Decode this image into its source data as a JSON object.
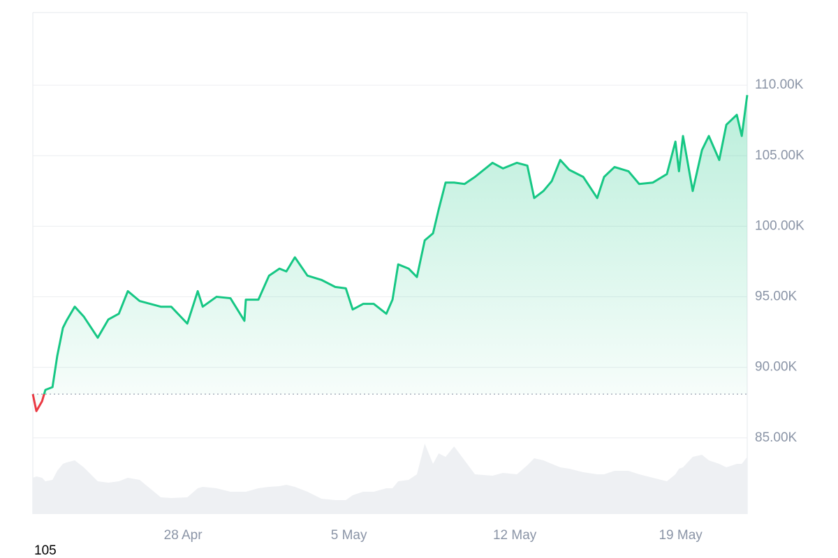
{
  "chart_data": {
    "type": "line",
    "x": [
      111.66,
      111.81,
      112.05,
      112.19,
      112.49,
      112.69,
      112.93,
      113.08,
      113.43,
      113.81,
      114.4,
      114.85,
      115.29,
      115.67,
      116.17,
      117.06,
      117.5,
      118.18,
      118.62,
      118.83,
      119.41,
      120.0,
      120.59,
      120.65,
      121.18,
      121.63,
      122.07,
      122.36,
      122.72,
      123.25,
      123.84,
      124.42,
      124.87,
      125.16,
      125.6,
      126.05,
      126.58,
      126.84,
      127.08,
      127.52,
      127.87,
      128.2,
      128.55,
      128.79,
      129.08,
      129.44,
      129.88,
      130.32,
      131.06,
      131.5,
      132.09,
      132.53,
      132.82,
      133.21,
      133.56,
      133.92,
      134.3,
      134.89,
      135.48,
      135.77,
      136.21,
      136.8,
      137.25,
      137.83,
      138.42,
      138.78,
      138.93,
      139.1,
      139.51,
      139.9,
      140.19,
      140.63,
      140.93,
      141.37,
      141.58,
      141.81
    ],
    "values": [
      88.1,
      86.9,
      87.6,
      88.4,
      88.6,
      90.8,
      92.8,
      93.3,
      94.3,
      93.6,
      92.1,
      93.4,
      93.8,
      95.4,
      94.7,
      94.3,
      94.3,
      93.1,
      95.4,
      94.3,
      95.0,
      94.9,
      93.3,
      94.8,
      94.8,
      96.5,
      97.0,
      96.8,
      97.8,
      96.5,
      96.2,
      95.7,
      95.6,
      94.1,
      94.5,
      94.5,
      93.8,
      94.8,
      97.3,
      97.0,
      96.4,
      99.0,
      99.5,
      101.2,
      103.1,
      103.1,
      103.0,
      103.5,
      104.5,
      104.1,
      104.5,
      104.3,
      102.0,
      102.5,
      103.2,
      104.7,
      104.0,
      103.5,
      102.0,
      103.5,
      104.2,
      103.9,
      103.0,
      103.1,
      103.7,
      106.0,
      103.9,
      106.4,
      102.5,
      105.4,
      106.4,
      104.7,
      107.2,
      107.9,
      106.4,
      109.3
    ],
    "volume": [
      52,
      54,
      52,
      47,
      49,
      62,
      72,
      74,
      77,
      67,
      47,
      45,
      47,
      52,
      49,
      24,
      23,
      24,
      37,
      39,
      37,
      32,
      32,
      32,
      37,
      39,
      40,
      42,
      39,
      32,
      22,
      20,
      20,
      27,
      32,
      32,
      37,
      37,
      47,
      49,
      57,
      101,
      72,
      87,
      82,
      97,
      77,
      57,
      55,
      59,
      57,
      70,
      80,
      77,
      72,
      67,
      65,
      60,
      57,
      57,
      62,
      62,
      57,
      52,
      47,
      57,
      65,
      67,
      82,
      85,
      77,
      72,
      67,
      72,
      72,
      82
    ],
    "volume_lim": [
      0,
      117
    ],
    "baseline": 88.1,
    "up_color": "#16c784",
    "down_color": "#ea3943",
    "volume_color": "#eef0f3",
    "xlim": [
      111.66,
      141.81
    ],
    "xticks": [
      {
        "value": 118,
        "label": "28 Apr"
      },
      {
        "value": 125,
        "label": "5 May"
      },
      {
        "value": 132,
        "label": "12 May"
      },
      {
        "value": 139,
        "label": "19 May"
      }
    ],
    "ylim": [
      79.6,
      115.15
    ],
    "yticks": [
      {
        "value": 85,
        "label": "85.00K"
      },
      {
        "value": 90,
        "label": "90.00K"
      },
      {
        "value": 95,
        "label": "95.00K"
      },
      {
        "value": 100,
        "label": "100.00K"
      },
      {
        "value": 105,
        "label": "105.00K"
      },
      {
        "value": 110,
        "label": "110.00K"
      }
    ],
    "grid": true,
    "footnote": "105"
  }
}
